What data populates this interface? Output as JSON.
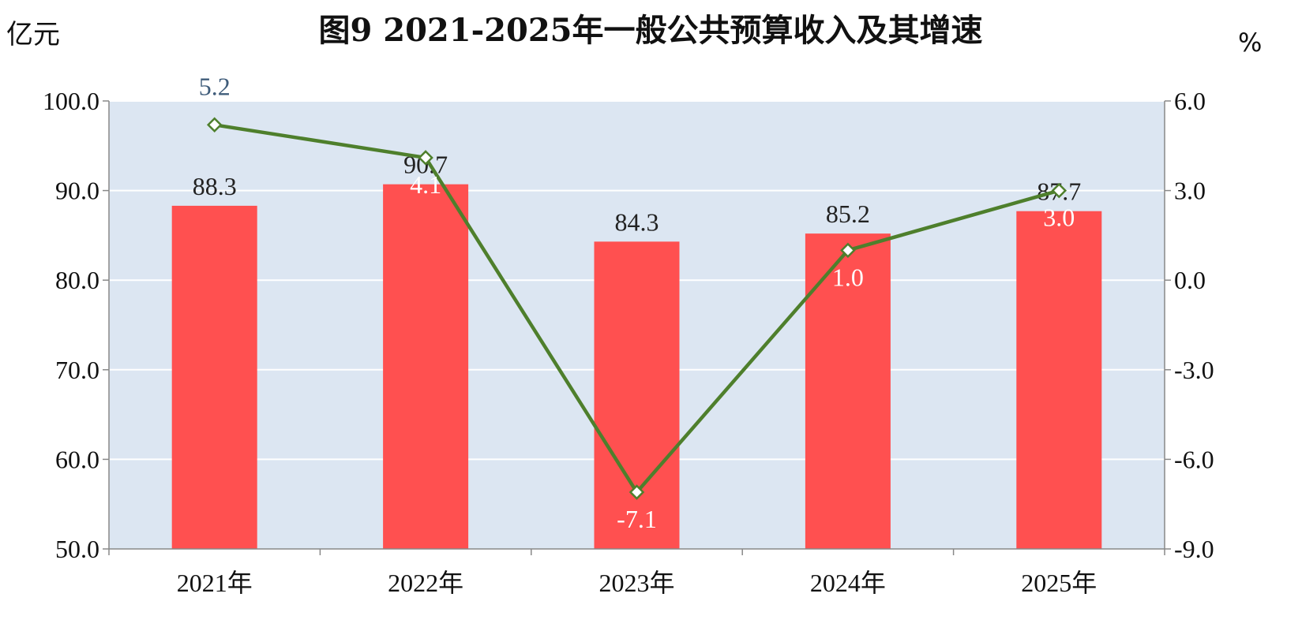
{
  "chart_data": {
    "type": "bar",
    "title": "图9  2021-2025年一般公共预算收入及其增速",
    "y_left_unit": "亿元",
    "y_right_unit": "%",
    "categories": [
      "2021年",
      "2022年",
      "2023年",
      "2024年",
      "2025年"
    ],
    "series": [
      {
        "type": "bar",
        "axis": "left",
        "values": [
          88.3,
          90.7,
          84.3,
          85.2,
          87.7
        ],
        "color": "#ff5050",
        "label_color": "#222222"
      },
      {
        "type": "line",
        "axis": "right",
        "values": [
          5.2,
          4.1,
          -7.1,
          1.0,
          3.0
        ],
        "color": "#4e7f2c",
        "marker_fill": "#ffffff"
      }
    ],
    "bar_labels": [
      "88.3",
      "90.7",
      "84.3",
      "85.2",
      "87.7"
    ],
    "line_labels": [
      "5.2",
      "4.1",
      "-7.1",
      "1.0",
      "3.0"
    ],
    "y_left": {
      "min": 50,
      "max": 100,
      "step": 10,
      "ticks": [
        "50.0",
        "60.0",
        "70.0",
        "80.0",
        "90.0",
        "100.0"
      ]
    },
    "y_right": {
      "min": -9,
      "max": 6,
      "step": 3,
      "ticks": [
        "-9.0",
        "-6.0",
        "-3.0",
        "0.0",
        "3.0",
        "6.0"
      ]
    },
    "grid": true,
    "plot_background": "#dce6f2",
    "line_label_first_color": "#3f5c7a",
    "line_label_inside_color": "#ffffff"
  }
}
